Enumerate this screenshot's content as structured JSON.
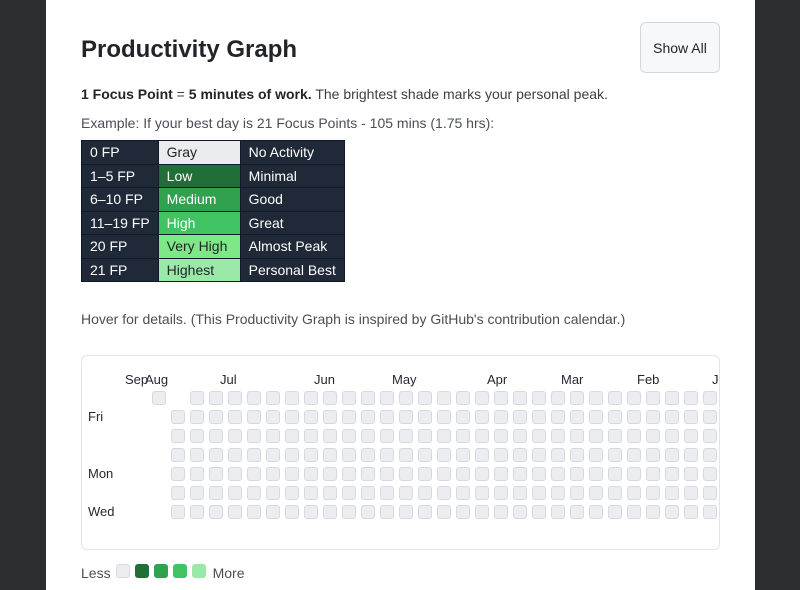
{
  "header": {
    "title": "Productivity Graph",
    "show_all_label": "Show All"
  },
  "description": {
    "fp_label": "1 Focus Point",
    "equals": " = ",
    "work": "5 minutes of work.",
    "rest": " The brightest shade marks your personal peak."
  },
  "example": "Example: If your best day is 21 Focus Points - 105 mins (1.75 hrs):",
  "legend_table": {
    "rows": [
      {
        "fp": "0 FP",
        "level": "Gray",
        "desc": "No Activity",
        "color": "#eaecef",
        "text_color": "#212529"
      },
      {
        "fp": "1–5 FP",
        "level": "Low",
        "desc": "Minimal",
        "color": "#216e39",
        "text_color": "#ffffff"
      },
      {
        "fp": "6–10 FP",
        "level": "Medium",
        "desc": "Good",
        "color": "#30a14e",
        "text_color": "#ffffff"
      },
      {
        "fp": "11–19 FP",
        "level": "High",
        "desc": "Great",
        "color": "#40c463",
        "text_color": "#ffffff"
      },
      {
        "fp": "20 FP",
        "level": "Very High",
        "desc": "Almost Peak",
        "color": "#7ee787",
        "text_color": "#212529"
      },
      {
        "fp": "21 FP",
        "level": "Highest",
        "desc": "Personal Best",
        "color": "#9be9a8",
        "text_color": "#212529"
      }
    ]
  },
  "hover_note": "Hover for details. (This Productivity Graph is inspired by GitHub's contribution calendar.)",
  "graph": {
    "months": [
      "Sep",
      "Aug",
      "Jul",
      "Jun",
      "May",
      "Apr",
      "Mar",
      "Feb",
      "Ja"
    ],
    "day_labels": [
      "Fri",
      "Mon",
      "Wed"
    ],
    "empty_color": "#ebedf0"
  },
  "scale": {
    "less": "Less",
    "more": "More",
    "colors": [
      "#ebedf0",
      "#216e39",
      "#30a14e",
      "#40c463",
      "#9be9a8"
    ]
  }
}
